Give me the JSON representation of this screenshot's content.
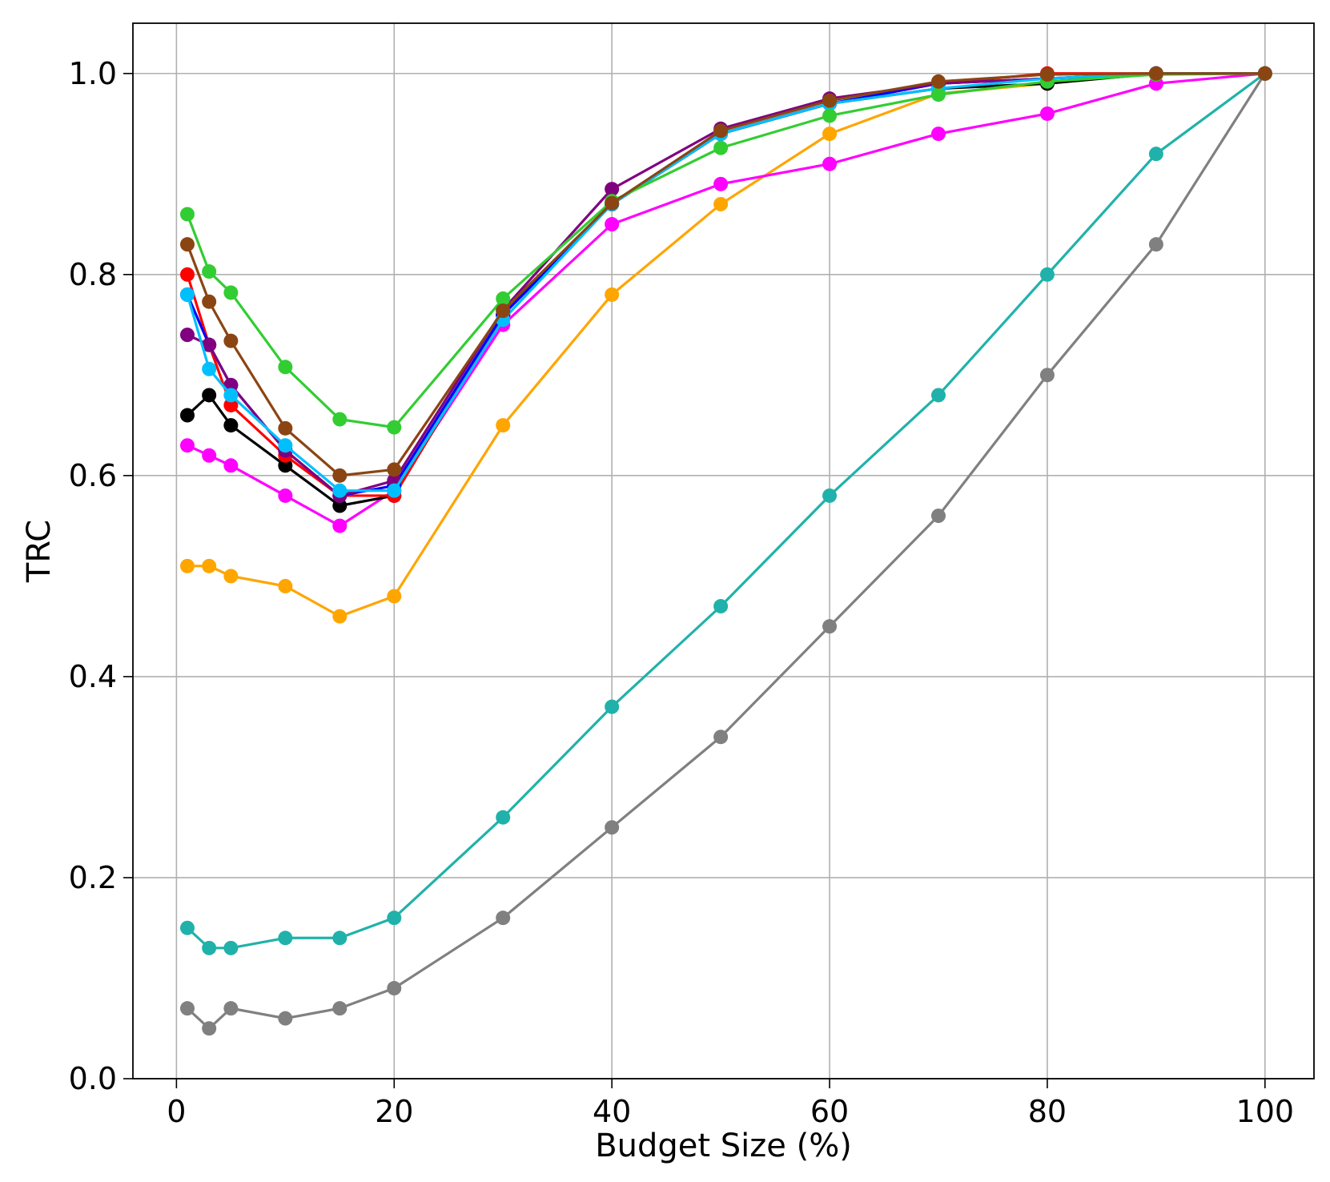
{
  "chart_data": {
    "type": "line",
    "title": "",
    "xlabel": "Budget Size (%)",
    "ylabel": "TRC",
    "xlim": [
      -4,
      104.5
    ],
    "ylim": [
      0.0,
      1.05
    ],
    "xticks": [
      0,
      20,
      40,
      60,
      80,
      100
    ],
    "xtick_labels": [
      "0",
      "20",
      "40",
      "60",
      "80",
      "100"
    ],
    "yticks": [
      0.0,
      0.2,
      0.4,
      0.6,
      0.8,
      1.0
    ],
    "ytick_labels": [
      "0.0",
      "0.2",
      "0.4",
      "0.6",
      "0.8",
      "1.0"
    ],
    "grid": true,
    "legend": "none",
    "x": [
      1,
      3,
      5,
      10,
      15,
      20,
      30,
      40,
      50,
      60,
      70,
      80,
      90,
      100
    ],
    "series": [
      {
        "name": "gray",
        "color": "#808080",
        "values": [
          0.07,
          0.05,
          0.07,
          0.06,
          0.07,
          0.09,
          0.16,
          0.25,
          0.34,
          0.45,
          0.56,
          0.7,
          0.83,
          1.0
        ]
      },
      {
        "name": "teal",
        "color": "#20b2aa",
        "values": [
          0.15,
          0.13,
          0.13,
          0.14,
          0.14,
          0.16,
          0.26,
          0.37,
          0.47,
          0.58,
          0.68,
          0.8,
          0.92,
          1.0
        ]
      },
      {
        "name": "orange",
        "color": "#ffa500",
        "values": [
          0.51,
          0.51,
          0.5,
          0.49,
          0.46,
          0.48,
          0.65,
          0.78,
          0.87,
          0.94,
          0.98,
          0.99,
          1.0,
          1.0
        ]
      },
      {
        "name": "magenta",
        "color": "#ff00ff",
        "values": [
          0.63,
          0.62,
          0.61,
          0.58,
          0.55,
          0.585,
          0.75,
          0.85,
          0.89,
          0.91,
          0.94,
          0.96,
          0.99,
          1.0
        ]
      },
      {
        "name": "black",
        "color": "#000000",
        "values": [
          0.66,
          0.68,
          0.65,
          0.61,
          0.57,
          0.58,
          0.76,
          0.87,
          0.94,
          0.97,
          0.985,
          0.99,
          1.0,
          1.0
        ]
      },
      {
        "name": "red",
        "color": "#ff0000",
        "values": [
          0.8,
          0.73,
          0.67,
          0.62,
          0.58,
          0.58,
          0.76,
          0.87,
          0.94,
          0.97,
          0.99,
          1.0,
          1.0,
          1.0
        ]
      },
      {
        "name": "blue",
        "color": "#0000ff",
        "values": [
          0.78,
          0.73,
          0.69,
          0.625,
          0.58,
          0.59,
          0.76,
          0.87,
          0.94,
          0.97,
          0.99,
          0.995,
          1.0,
          1.0
        ]
      },
      {
        "name": "purple",
        "color": "#800080",
        "values": [
          0.74,
          0.73,
          0.69,
          0.625,
          0.58,
          0.595,
          0.765,
          0.885,
          0.945,
          0.975,
          0.99,
          0.995,
          1.0,
          1.0
        ]
      },
      {
        "name": "deepskyblue",
        "color": "#00bfff",
        "values": [
          0.78,
          0.706,
          0.68,
          0.63,
          0.585,
          0.585,
          0.755,
          0.87,
          0.94,
          0.97,
          0.985,
          0.995,
          1.0,
          1.0
        ]
      },
      {
        "name": "limegreen",
        "color": "#32cd32",
        "values": [
          0.86,
          0.803,
          0.782,
          0.708,
          0.656,
          0.648,
          0.776,
          0.873,
          0.926,
          0.958,
          0.979,
          0.992,
          0.999,
          1.0
        ]
      },
      {
        "name": "saddlebrown",
        "color": "#8b4513",
        "values": [
          0.83,
          0.773,
          0.734,
          0.647,
          0.6,
          0.606,
          0.764,
          0.871,
          0.943,
          0.973,
          0.992,
          0.999,
          1.0,
          1.0
        ]
      }
    ]
  }
}
